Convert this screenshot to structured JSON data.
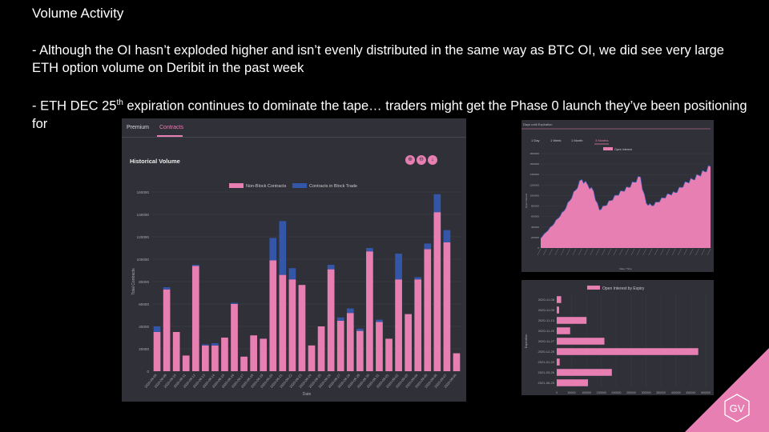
{
  "slide": {
    "title": "Volume Activity",
    "bullet1": "- Although the OI hasn’t exploded higher and isn’t evenly distributed in the same way as BTC OI, we did see very large ETH option volume on Deribit in the past week",
    "bullet2_pre": "- ETH DEC 25",
    "bullet2_sup": "th",
    "bullet2_post": " expiration continues to dominate the tape… traders might get the Phase 0 launch they’ve been positioning for",
    "logo_text": "GV"
  },
  "colors": {
    "pink": "#e77fb3",
    "blue": "#3456a8",
    "panel": "#2f3038",
    "grid": "#40414a"
  },
  "main_panel": {
    "tabs": [
      "Premium",
      "Contracts"
    ],
    "active_tab": "Contracts",
    "title": "Historical Volume",
    "buttons": [
      "zoom-in-icon",
      "zoom-out-icon",
      "download-icon"
    ]
  },
  "oi_panel": {
    "header": "Days until Expiration",
    "range_tabs": [
      "1 Day",
      "1 Week",
      "1 Month",
      "3 Months"
    ],
    "active_range": "3 Months"
  },
  "chart_data": [
    {
      "type": "bar",
      "stacked": true,
      "ylabel": "Total Contracts",
      "xlabel": "Date",
      "ylim": [
        0,
        160000
      ],
      "yticks": [
        0,
        20000,
        40000,
        60000,
        80000,
        100000,
        120000,
        140000,
        160000
      ],
      "legend_position": "top-center",
      "categories": [
        "2020-08-08",
        "2020-08-09",
        "2020-08-10",
        "2020-08-11",
        "2020-08-12",
        "2020-08-13",
        "2020-08-14",
        "2020-08-15",
        "2020-08-16",
        "2020-08-17",
        "2020-08-18",
        "2020-08-19",
        "2020-08-20",
        "2020-08-21",
        "2020-08-22",
        "2020-08-23",
        "2020-08-24",
        "2020-08-25",
        "2020-08-26",
        "2020-08-27",
        "2020-08-28",
        "2020-08-29",
        "2020-08-30",
        "2020-08-31",
        "2020-09-01",
        "2020-09-02",
        "2020-09-03",
        "2020-09-04",
        "2020-09-05",
        "2020-09-06",
        "2020-09-07",
        "2020-09-08"
      ],
      "series": [
        {
          "name": "Non-Block Contracts",
          "color": "#e77fb3",
          "values": [
            35000,
            73000,
            35000,
            14000,
            94000,
            23000,
            23000,
            30000,
            60000,
            13000,
            32000,
            29000,
            99000,
            86000,
            82000,
            77000,
            23000,
            40000,
            91000,
            45000,
            52000,
            36000,
            107000,
            44000,
            29000,
            82000,
            51000,
            82000,
            109000,
            142000,
            115000,
            16000
          ]
        },
        {
          "name": "Contracts in Block Trade",
          "color": "#3456a8",
          "values": [
            5000,
            2000,
            0,
            0,
            1000,
            1000,
            2000,
            0,
            1000,
            0,
            0,
            0,
            20000,
            48000,
            10000,
            0,
            0,
            0,
            4000,
            3000,
            4000,
            2000,
            3000,
            2000,
            0,
            23000,
            0,
            2000,
            5000,
            16000,
            11000,
            0
          ]
        }
      ]
    },
    {
      "type": "area",
      "ylabel": "Open Interest",
      "xlabel": "Date / Time",
      "ylim": [
        0,
        1800000
      ],
      "yticks": [
        0,
        200000,
        400000,
        600000,
        800000,
        1000000,
        1200000,
        1400000,
        1600000,
        1800000
      ],
      "legend_position": "top-center",
      "series": [
        {
          "name": "Open Interest",
          "color": "#e77fb3",
          "values": [
            180000,
            300000,
            420000,
            560000,
            700000,
            900000,
            1100000,
            1300000,
            1200000,
            1080000,
            720000,
            800000,
            900000,
            1000000,
            1080000,
            1150000,
            1250000,
            1350000,
            850000,
            800000,
            870000,
            950000,
            1020000,
            1050000,
            1150000,
            1250000,
            1300000,
            1380000,
            1450000,
            1550000
          ]
        }
      ]
    },
    {
      "type": "bar",
      "orientation": "horizontal",
      "ylabel": "Expiration",
      "xlim": [
        0,
        500000
      ],
      "xticks": [
        0,
        50000,
        100000,
        150000,
        200000,
        250000,
        300000,
        350000,
        400000,
        450000,
        500000
      ],
      "legend_position": "top-center",
      "categories": [
        "2020-11-08",
        "2020-11-09",
        "2020-11-13",
        "2020-11-20",
        "2020-11-27",
        "2020-12-25",
        "2021-01-29",
        "2021-03-26",
        "2021-06-25"
      ],
      "series": [
        {
          "name": "Open Interest by Expiry",
          "color": "#e77fb3",
          "values": [
            15000,
            8000,
            100000,
            45000,
            160000,
            475000,
            10000,
            185000,
            105000
          ]
        }
      ]
    }
  ]
}
